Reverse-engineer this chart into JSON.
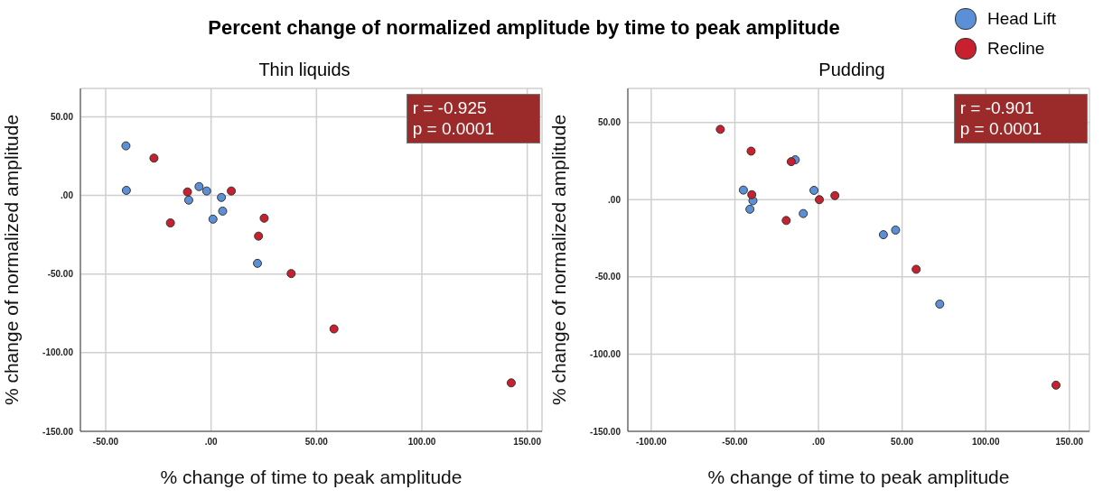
{
  "chart_data": [
    {
      "type": "scatter",
      "title": "Percent change of normalized amplitude by time to peak amplitude",
      "subtitle": "Thin liquids",
      "xlabel": "% change of time to peak amplitude",
      "ylabel": "% change of normalized amplitude",
      "xlim": [
        -62,
        157
      ],
      "ylim": [
        -150,
        68
      ],
      "xticks": [
        {
          "value": -50,
          "label": "-50.00"
        },
        {
          "value": 0,
          "label": ".00"
        },
        {
          "value": 50,
          "label": "50.00"
        },
        {
          "value": 100,
          "label": "100.00"
        },
        {
          "value": 150,
          "label": "150.00"
        }
      ],
      "yticks": [
        {
          "value": -150,
          "label": "-150.00"
        },
        {
          "value": -100,
          "label": "-100.00"
        },
        {
          "value": -50,
          "label": "-50.00"
        },
        {
          "value": 0,
          "label": ".00"
        },
        {
          "value": 50,
          "label": "50.00"
        }
      ],
      "grid": true,
      "marker": "circle",
      "annotations": [
        "r = -0.925",
        "p = 0.0001"
      ],
      "series": [
        {
          "color": "#5b8fd6",
          "x": [
            -40.4,
            -40.2,
            -10.6,
            -5.7,
            -2.1,
            4.9,
            5.5,
            0.9,
            22.0
          ],
          "values": [
            31.5,
            3.2,
            -3.0,
            5.6,
            2.8,
            -1.3,
            -10.0,
            -15.1,
            -43.2
          ]
        },
        {
          "color": "#c8202e",
          "x": [
            -27.1,
            -11.2,
            -19.3,
            9.6,
            25.2,
            22.5,
            38.0,
            58.3,
            142.4
          ],
          "values": [
            23.7,
            2.2,
            -17.5,
            2.8,
            -14.5,
            -25.9,
            -49.7,
            -84.9,
            -119.2
          ]
        }
      ]
    },
    {
      "type": "scatter",
      "title": "Pudding",
      "xlabel": "% change of time to peak amplitude",
      "ylabel": "% change of normalized amplitude",
      "xlim": [
        -114,
        162
      ],
      "ylim": [
        -150,
        72
      ],
      "xticks": [
        {
          "value": -100,
          "label": "-100.00"
        },
        {
          "value": -50,
          "label": "-50.00"
        },
        {
          "value": 0,
          "label": ".00"
        },
        {
          "value": 50,
          "label": "50.00"
        },
        {
          "value": 100,
          "label": "100.00"
        },
        {
          "value": 150,
          "label": "150.00"
        }
      ],
      "yticks": [
        {
          "value": -150,
          "label": "-150.00"
        },
        {
          "value": -100,
          "label": "-100.00"
        },
        {
          "value": -50,
          "label": "-50.00"
        },
        {
          "value": 0,
          "label": ".00"
        },
        {
          "value": 50,
          "label": "50.00"
        }
      ],
      "grid": true,
      "marker": "circle",
      "legend": "top right",
      "annotations": [
        "r = -0.901",
        "p = 0.0001"
      ],
      "series": [
        {
          "name": "Head Lift",
          "color": "#5b8fd6",
          "x": [
            -13.9,
            -44.9,
            -39.2,
            -41.0,
            -9.1,
            -2.7,
            38.8,
            46.1,
            72.5
          ],
          "values": [
            25.8,
            6.2,
            -0.7,
            -6.2,
            -9.0,
            6.0,
            -22.7,
            -19.7,
            -67.6
          ]
        },
        {
          "name": "Recline",
          "color": "#c8202e",
          "x": [
            -58.7,
            -40.3,
            -16.3,
            -39.9,
            0.5,
            9.8,
            -19.3,
            58.4,
            142.0
          ],
          "values": [
            45.5,
            31.4,
            24.6,
            3.2,
            0,
            2.6,
            -13.5,
            -45.1,
            -120.1
          ]
        }
      ]
    }
  ]
}
